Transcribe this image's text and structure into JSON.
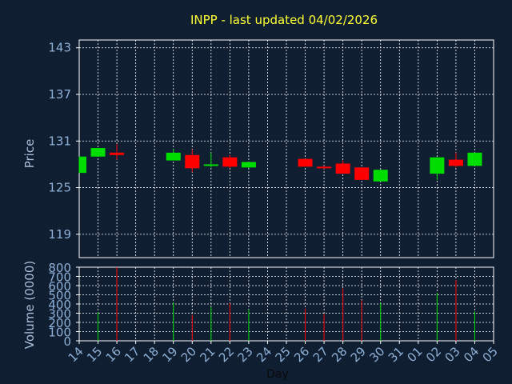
{
  "chart_data": {
    "type": "candlestick",
    "title": "INPP - last updated 04/02/2026",
    "colors": {
      "background": "#0f1e31",
      "title": "#ffff33",
      "axis_text": "#8fb0d6",
      "label_text": "#a9c0d8",
      "grid": "#ffffff",
      "up": "#00dd00",
      "down": "#ff0000"
    },
    "x_tick_labels": [
      "14",
      "15",
      "16",
      "17",
      "18",
      "19",
      "20",
      "21",
      "22",
      "23",
      "24",
      "25",
      "26",
      "27",
      "28",
      "29",
      "30",
      "31",
      "01",
      "02",
      "03",
      "04",
      "05"
    ],
    "xlabel": "Day",
    "price": {
      "ylabel": "Price",
      "ylim": [
        116,
        144
      ],
      "ticks": [
        119,
        125,
        131,
        137,
        143
      ],
      "tick_labels": [
        "119",
        "125",
        "131",
        "137",
        "143"
      ],
      "candles": [
        {
          "i": 0,
          "open": 126.9,
          "close": 129.0,
          "high": 129.0,
          "low": 126.9
        },
        {
          "i": 1,
          "open": 129.0,
          "close": 130.1,
          "high": 130.1,
          "low": 129.0
        },
        {
          "i": 2,
          "open": 129.5,
          "close": 129.2,
          "high": 130.6,
          "low": 128.6
        },
        {
          "i": 5,
          "open": 128.5,
          "close": 129.5,
          "high": 130.0,
          "low": 128.5
        },
        {
          "i": 6,
          "open": 129.2,
          "close": 127.5,
          "high": 129.9,
          "low": 127.0
        },
        {
          "i": 7,
          "open": 127.8,
          "close": 128.0,
          "high": 129.5,
          "low": 127.6
        },
        {
          "i": 8,
          "open": 128.9,
          "close": 127.7,
          "high": 129.2,
          "low": 127.5
        },
        {
          "i": 9,
          "open": 127.6,
          "close": 128.3,
          "high": 128.3,
          "low": 127.5
        },
        {
          "i": 12,
          "open": 128.7,
          "close": 127.7,
          "high": 128.7,
          "low": 127.7
        },
        {
          "i": 13,
          "open": 127.7,
          "close": 127.5,
          "high": 127.8,
          "low": 127.4
        },
        {
          "i": 14,
          "open": 128.1,
          "close": 126.8,
          "high": 128.5,
          "low": 126.8
        },
        {
          "i": 15,
          "open": 127.6,
          "close": 126.0,
          "high": 127.6,
          "low": 126.0
        },
        {
          "i": 16,
          "open": 125.8,
          "close": 127.3,
          "high": 127.3,
          "low": 125.8
        },
        {
          "i": 19,
          "open": 126.8,
          "close": 128.9,
          "high": 128.9,
          "low": 126.0
        },
        {
          "i": 20,
          "open": 128.6,
          "close": 127.8,
          "high": 129.5,
          "low": 127.6
        },
        {
          "i": 21,
          "open": 127.8,
          "close": 129.5,
          "high": 129.5,
          "low": 127.8
        }
      ]
    },
    "volume": {
      "ylabel": "Volume (0000)",
      "ylim": [
        0,
        800
      ],
      "ticks": [
        0,
        100,
        200,
        300,
        400,
        500,
        600,
        700,
        800
      ],
      "tick_labels": [
        "0",
        "100",
        "200",
        "300",
        "400",
        "500",
        "600",
        "700",
        "800"
      ],
      "bars": [
        {
          "i": 1,
          "value": 310,
          "dir": "up"
        },
        {
          "i": 2,
          "value": 800,
          "dir": "down"
        },
        {
          "i": 5,
          "value": 420,
          "dir": "up"
        },
        {
          "i": 6,
          "value": 280,
          "dir": "down"
        },
        {
          "i": 7,
          "value": 370,
          "dir": "up"
        },
        {
          "i": 8,
          "value": 410,
          "dir": "down"
        },
        {
          "i": 9,
          "value": 340,
          "dir": "up"
        },
        {
          "i": 12,
          "value": 350,
          "dir": "down"
        },
        {
          "i": 13,
          "value": 290,
          "dir": "down"
        },
        {
          "i": 14,
          "value": 570,
          "dir": "down"
        },
        {
          "i": 15,
          "value": 440,
          "dir": "down"
        },
        {
          "i": 16,
          "value": 410,
          "dir": "up"
        },
        {
          "i": 19,
          "value": 520,
          "dir": "up"
        },
        {
          "i": 20,
          "value": 660,
          "dir": "down"
        },
        {
          "i": 21,
          "value": 320,
          "dir": "up"
        }
      ]
    },
    "grid": true
  }
}
